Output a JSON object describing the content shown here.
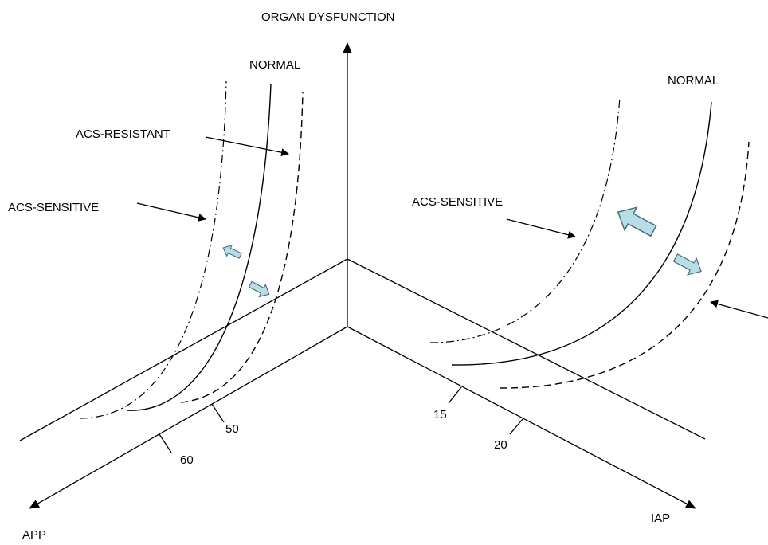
{
  "axes": {
    "vertical": "ORGAN DYSFUNCTION",
    "left": "APP",
    "right": "IAP"
  },
  "left_panel": {
    "normal": "NORMAL",
    "resistant": "ACS-RESISTANT",
    "sensitive": "ACS-SENSITIVE",
    "ticks": [
      "50",
      "60"
    ]
  },
  "right_panel": {
    "normal": "NORMAL",
    "sensitive": "ACS-SENSITIVE",
    "ticks": [
      "15",
      "20"
    ]
  },
  "colors": {
    "line": "#000000",
    "shift_arrow_fill": "#b7dde6",
    "shift_arrow_stroke": "#3f6f7c"
  }
}
